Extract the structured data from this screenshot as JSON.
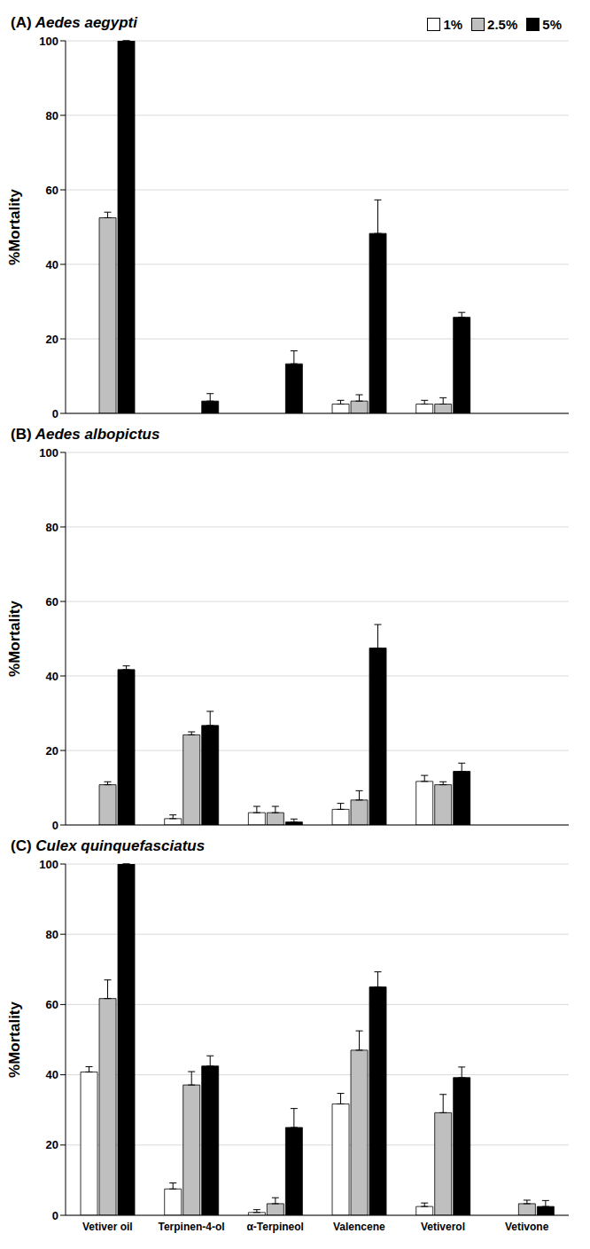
{
  "chart_data": [
    {
      "type": "bar",
      "title": "(A) Aedes aegypti",
      "y_label": "%Mortality",
      "categories": [
        "Vetiver oil",
        "Terpinen-4-ol",
        "α-Terpineol",
        "Valencene",
        "Vetiverol",
        "Vetivone"
      ],
      "series": [
        {
          "name": "1%",
          "color": "#ffffff",
          "values": [
            0,
            0,
            0,
            2.5,
            2.5,
            0
          ],
          "errors": [
            0,
            0,
            0,
            1,
            1,
            0
          ]
        },
        {
          "name": "2.5%",
          "color": "#bfbfbf",
          "values": [
            52.5,
            0,
            0,
            3.3,
            2.5,
            0
          ],
          "errors": [
            1.5,
            0,
            0,
            1.7,
            1.7,
            0
          ]
        },
        {
          "name": "5%",
          "color": "#000000",
          "values": [
            100,
            3.3,
            13.3,
            48.3,
            25.8,
            0
          ],
          "errors": [
            0,
            2,
            3.5,
            9,
            1.3,
            0
          ]
        }
      ],
      "ylim": [
        0,
        100
      ],
      "yticks": [
        0,
        20,
        40,
        60,
        80,
        100
      ],
      "grid": true,
      "legend": "upper right",
      "tick_labels": "y"
    },
    {
      "type": "bar",
      "title": "(B) Aedes albopictus",
      "y_label": "%Mortality",
      "categories": [
        "Vetiver oil",
        "Terpinen-4-ol",
        "α-Terpineol",
        "Valencene",
        "Vetiverol",
        "Vetivone"
      ],
      "series": [
        {
          "name": "1%",
          "color": "#ffffff",
          "values": [
            0,
            1.7,
            3.3,
            4.2,
            11.7,
            0
          ],
          "errors": [
            0,
            1,
            1.7,
            1.6,
            1.6,
            0
          ]
        },
        {
          "name": "2.5%",
          "color": "#bfbfbf",
          "values": [
            10.8,
            24.2,
            3.3,
            6.7,
            10.8,
            0
          ],
          "errors": [
            0.8,
            0.8,
            1.7,
            2.5,
            0.8,
            0
          ]
        },
        {
          "name": "5%",
          "color": "#000000",
          "values": [
            41.7,
            26.7,
            0.8,
            47.5,
            14.4,
            0
          ],
          "errors": [
            1,
            3.8,
            0.8,
            6.3,
            2.2,
            0
          ]
        }
      ],
      "ylim": [
        0,
        100
      ],
      "yticks": [
        0,
        20,
        40,
        60,
        80,
        100
      ],
      "grid": true,
      "tick_labels": "y"
    },
    {
      "type": "bar",
      "title": "(C) Culex quinquefasciatus",
      "y_label": "%Mortality",
      "categories": [
        "Vetiver oil",
        "Terpinen-4-ol",
        "α-Terpineol",
        "Valencene",
        "Vetiverol",
        "Vetivone"
      ],
      "series": [
        {
          "name": "1%",
          "color": "#ffffff",
          "values": [
            40.8,
            7.5,
            0.8,
            31.7,
            2.5,
            0
          ],
          "errors": [
            1.5,
            1.7,
            0.8,
            3,
            1,
            0
          ]
        },
        {
          "name": "2.5%",
          "color": "#bfbfbf",
          "values": [
            61.7,
            37.1,
            3.3,
            47,
            29.2,
            3.3
          ],
          "errors": [
            5.3,
            3.8,
            1.7,
            5.5,
            5.2,
            1
          ]
        },
        {
          "name": "5%",
          "color": "#000000",
          "values": [
            100,
            42.5,
            25,
            65,
            39.2,
            2.5
          ],
          "errors": [
            0,
            2.9,
            5.4,
            4.3,
            3,
            1.7
          ]
        }
      ],
      "ylim": [
        0,
        100
      ],
      "yticks": [
        0,
        20,
        40,
        60,
        80,
        100
      ],
      "grid": true
    }
  ]
}
